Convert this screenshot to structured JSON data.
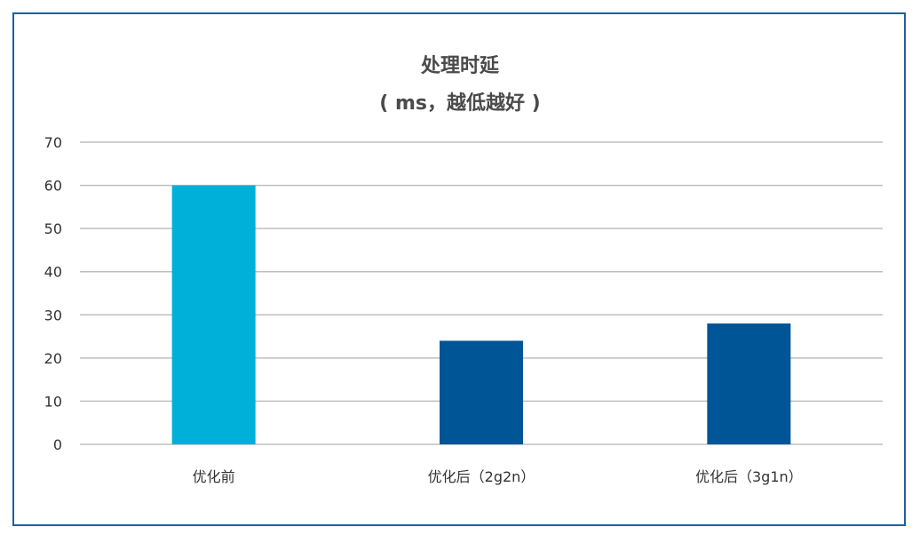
{
  "chart_data": {
    "type": "bar",
    "title": "处理时延",
    "subtitle": "( ms，越低越好 )",
    "categories": [
      "优化前",
      "优化后（2g2n）",
      "优化后（3g1n）"
    ],
    "values": [
      60,
      24,
      28
    ],
    "colors": [
      "#00b0d8",
      "#005596",
      "#005596"
    ],
    "ylim": [
      0,
      70
    ],
    "yticks": [
      0,
      10,
      20,
      30,
      40,
      50,
      60,
      70
    ],
    "grid": true,
    "legend": "none",
    "gridColor": "#bfbfbf"
  }
}
